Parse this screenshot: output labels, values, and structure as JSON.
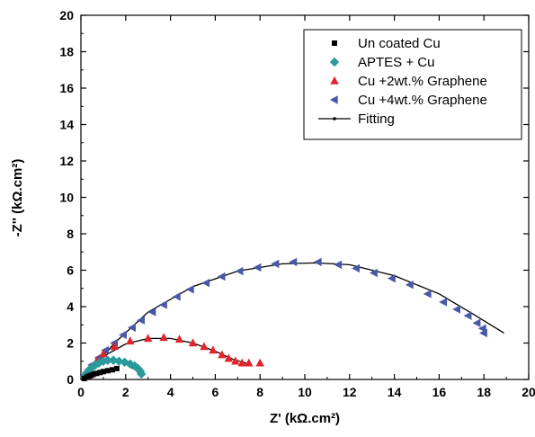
{
  "chart_data": {
    "type": "scatter",
    "xlabel": "Z' (kΩ.cm²)",
    "ylabel": "-Z'' (kΩ.cm²)",
    "xlim": [
      0,
      20
    ],
    "ylim": [
      0,
      20
    ],
    "xticks": [
      "0",
      "2",
      "4",
      "6",
      "8",
      "10",
      "12",
      "14",
      "16",
      "18",
      "20"
    ],
    "yticks": [
      "0",
      "2",
      "4",
      "6",
      "8",
      "10",
      "12",
      "14",
      "16",
      "18",
      "20"
    ],
    "grid": false,
    "legend_position": "top-right",
    "series": [
      {
        "name": "Un coated Cu",
        "marker": "square",
        "color": "#000000",
        "x": [
          0.15,
          0.25,
          0.35,
          0.45,
          0.55,
          0.7,
          0.85,
          1.0,
          1.2,
          1.4,
          1.6
        ],
        "y": [
          0.05,
          0.12,
          0.18,
          0.22,
          0.28,
          0.33,
          0.38,
          0.43,
          0.48,
          0.53,
          0.6
        ]
      },
      {
        "name": "APTES + Cu",
        "marker": "diamond",
        "color": "#2a9a9a",
        "x": [
          0.15,
          0.25,
          0.35,
          0.5,
          0.65,
          0.8,
          1.0,
          1.2,
          1.45,
          1.7,
          1.95,
          2.2,
          2.4,
          2.55,
          2.65,
          2.7
        ],
        "y": [
          0.15,
          0.35,
          0.5,
          0.65,
          0.8,
          0.9,
          1.0,
          1.05,
          1.05,
          1.0,
          0.95,
          0.85,
          0.75,
          0.6,
          0.45,
          0.3
        ]
      },
      {
        "name": "Cu +2wt.% Graphene",
        "marker": "triangle-up",
        "color": "#e0242a",
        "x": [
          0.2,
          0.4,
          0.7,
          1.0,
          1.5,
          2.2,
          3.0,
          3.7,
          4.4,
          5.0,
          5.5,
          5.9,
          6.3,
          6.6,
          6.9,
          7.2,
          7.5,
          8.0
        ],
        "y": [
          0.3,
          0.6,
          1.0,
          1.4,
          1.8,
          2.1,
          2.25,
          2.3,
          2.2,
          2.0,
          1.8,
          1.6,
          1.35,
          1.15,
          1.0,
          0.9,
          0.9,
          0.9
        ]
      },
      {
        "name": "Cu +4wt.% Graphene",
        "marker": "triangle-left",
        "color": "#4a58a8",
        "x": [
          0.5,
          0.8,
          1.1,
          1.5,
          1.9,
          2.3,
          2.7,
          3.2,
          3.7,
          4.3,
          4.9,
          5.6,
          6.3,
          7.1,
          7.9,
          8.7,
          9.5,
          10.6,
          11.5,
          12.3,
          13.1,
          13.9,
          14.7,
          15.5,
          16.2,
          16.8,
          17.3,
          17.7,
          17.95,
          18.0
        ],
        "y": [
          0.8,
          1.2,
          1.6,
          2.0,
          2.45,
          2.85,
          3.25,
          3.7,
          4.1,
          4.55,
          4.95,
          5.3,
          5.65,
          5.95,
          6.15,
          6.35,
          6.45,
          6.45,
          6.3,
          6.1,
          5.85,
          5.55,
          5.2,
          4.7,
          4.25,
          3.85,
          3.5,
          3.1,
          2.8,
          2.55
        ]
      },
      {
        "name": "Fitting",
        "marker": "line",
        "color": "#000000",
        "x": [],
        "y": []
      }
    ],
    "fits": [
      {
        "x": [
          0.15,
          0.4,
          0.8,
          1.2,
          1.6,
          2.0,
          2.4,
          2.75
        ],
        "y": [
          0.0,
          0.55,
          0.95,
          1.1,
          1.05,
          0.85,
          0.55,
          0.2
        ]
      },
      {
        "x": [
          0.15,
          0.6,
          1.2,
          2.0,
          3.0,
          4.0,
          5.0,
          6.0,
          6.8,
          7.5
        ],
        "y": [
          0.0,
          0.8,
          1.4,
          1.95,
          2.25,
          2.25,
          2.0,
          1.55,
          1.1,
          0.85
        ]
      },
      {
        "x": [
          0.4,
          1.5,
          3.0,
          5.0,
          7.0,
          9.0,
          10.5,
          12.0,
          14.0,
          16.0,
          17.5,
          18.9
        ],
        "y": [
          0.4,
          2.0,
          3.7,
          5.1,
          5.95,
          6.35,
          6.4,
          6.3,
          5.7,
          4.7,
          3.6,
          2.55
        ]
      }
    ]
  }
}
